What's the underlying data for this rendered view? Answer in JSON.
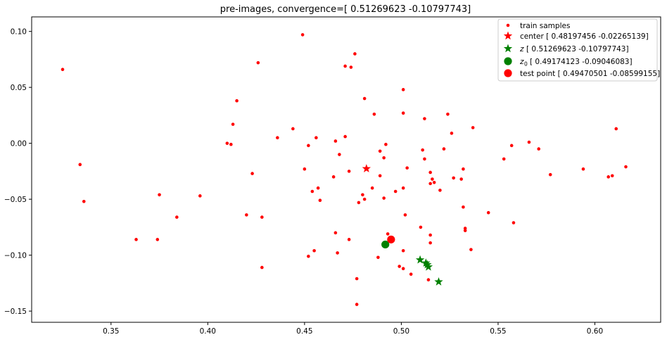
{
  "chart_data": {
    "type": "scatter",
    "title": "pre-images, convergence=[ 0.51269623 -0.10797743]",
    "xlabel": "",
    "ylabel": "",
    "xlim": [
      0.309,
      0.634
    ],
    "ylim": [
      -0.16,
      0.113
    ],
    "x_ticks": [
      0.35,
      0.4,
      0.45,
      0.5,
      0.55,
      0.6
    ],
    "x_tick_labels": [
      "0.35",
      "0.40",
      "0.45",
      "0.50",
      "0.55",
      "0.60"
    ],
    "y_ticks": [
      0.1,
      0.05,
      0.0,
      -0.05,
      -0.1,
      -0.15
    ],
    "y_tick_labels": [
      "0.10",
      "0.05",
      "0.00",
      "−0.05",
      "−0.10",
      "−0.15"
    ],
    "grid": false,
    "legend_position": "top-right",
    "series": [
      {
        "name": "train samples",
        "legend_label": "train samples",
        "marker": "dot",
        "color": "#ff0000",
        "points": [
          [
            0.325,
            0.066
          ],
          [
            0.449,
            0.097
          ],
          [
            0.476,
            0.08
          ],
          [
            0.471,
            0.069
          ],
          [
            0.474,
            0.068
          ],
          [
            0.426,
            0.072
          ],
          [
            0.481,
            0.04
          ],
          [
            0.501,
            0.048
          ],
          [
            0.415,
            0.038
          ],
          [
            0.486,
            0.026
          ],
          [
            0.501,
            0.027
          ],
          [
            0.512,
            0.022
          ],
          [
            0.524,
            0.026
          ],
          [
            0.537,
            0.014
          ],
          [
            0.611,
            0.013
          ],
          [
            0.413,
            0.017
          ],
          [
            0.444,
            0.013
          ],
          [
            0.526,
            0.009
          ],
          [
            0.566,
            0.001
          ],
          [
            0.471,
            0.006
          ],
          [
            0.456,
            0.005
          ],
          [
            0.436,
            0.005
          ],
          [
            0.466,
            0.002
          ],
          [
            0.41,
            0.0
          ],
          [
            0.412,
            -0.001
          ],
          [
            0.452,
            -0.002
          ],
          [
            0.492,
            -0.001
          ],
          [
            0.557,
            -0.002
          ],
          [
            0.571,
            -0.005
          ],
          [
            0.511,
            -0.006
          ],
          [
            0.522,
            -0.005
          ],
          [
            0.489,
            -0.007
          ],
          [
            0.468,
            -0.01
          ],
          [
            0.491,
            -0.013
          ],
          [
            0.512,
            -0.014
          ],
          [
            0.553,
            -0.014
          ],
          [
            0.334,
            -0.019
          ],
          [
            0.45,
            -0.023
          ],
          [
            0.503,
            -0.022
          ],
          [
            0.532,
            -0.023
          ],
          [
            0.594,
            -0.023
          ],
          [
            0.616,
            -0.021
          ],
          [
            0.473,
            -0.025
          ],
          [
            0.515,
            -0.026
          ],
          [
            0.423,
            -0.027
          ],
          [
            0.577,
            -0.028
          ],
          [
            0.465,
            -0.03
          ],
          [
            0.489,
            -0.029
          ],
          [
            0.609,
            -0.029
          ],
          [
            0.607,
            -0.03
          ],
          [
            0.516,
            -0.032
          ],
          [
            0.527,
            -0.031
          ],
          [
            0.531,
            -0.032
          ],
          [
            0.515,
            -0.036
          ],
          [
            0.517,
            -0.035
          ],
          [
            0.501,
            -0.04
          ],
          [
            0.457,
            -0.04
          ],
          [
            0.485,
            -0.04
          ],
          [
            0.454,
            -0.043
          ],
          [
            0.497,
            -0.043
          ],
          [
            0.52,
            -0.042
          ],
          [
            0.375,
            -0.046
          ],
          [
            0.396,
            -0.047
          ],
          [
            0.48,
            -0.046
          ],
          [
            0.458,
            -0.051
          ],
          [
            0.491,
            -0.049
          ],
          [
            0.481,
            -0.05
          ],
          [
            0.336,
            -0.052
          ],
          [
            0.478,
            -0.053
          ],
          [
            0.532,
            -0.057
          ],
          [
            0.545,
            -0.062
          ],
          [
            0.42,
            -0.064
          ],
          [
            0.502,
            -0.064
          ],
          [
            0.384,
            -0.066
          ],
          [
            0.428,
            -0.066
          ],
          [
            0.558,
            -0.071
          ],
          [
            0.51,
            -0.075
          ],
          [
            0.533,
            -0.076
          ],
          [
            0.533,
            -0.078
          ],
          [
            0.466,
            -0.08
          ],
          [
            0.493,
            -0.081
          ],
          [
            0.515,
            -0.082
          ],
          [
            0.363,
            -0.086
          ],
          [
            0.374,
            -0.086
          ],
          [
            0.473,
            -0.086
          ],
          [
            0.515,
            -0.089
          ],
          [
            0.536,
            -0.095
          ],
          [
            0.455,
            -0.096
          ],
          [
            0.501,
            -0.096
          ],
          [
            0.467,
            -0.098
          ],
          [
            0.452,
            -0.101
          ],
          [
            0.488,
            -0.102
          ],
          [
            0.428,
            -0.111
          ],
          [
            0.499,
            -0.11
          ],
          [
            0.501,
            -0.112
          ],
          [
            0.505,
            -0.117
          ],
          [
            0.477,
            -0.121
          ],
          [
            0.514,
            -0.122
          ],
          [
            0.477,
            -0.144
          ]
        ]
      },
      {
        "name": "center",
        "legend_label": "center [ 0.48197456 -0.02265139]",
        "marker": "star",
        "color": "#ff0000",
        "points": [
          [
            0.48197456,
            -0.02265139
          ]
        ]
      },
      {
        "name": "z",
        "legend_label_text": "[ 0.51269623 -0.10797743]",
        "marker": "star",
        "color": "#008000",
        "points": [
          [
            0.5097,
            -0.1042
          ],
          [
            0.5127,
            -0.107
          ],
          [
            0.5134,
            -0.1085
          ],
          [
            0.514,
            -0.1105
          ],
          [
            0.5193,
            -0.1238
          ]
        ]
      },
      {
        "name": "z0",
        "legend_label_text": "[ 0.49174123 -0.09046083]",
        "marker": "circle",
        "color": "#008000",
        "points": [
          [
            0.49174123,
            -0.09046083
          ]
        ]
      },
      {
        "name": "test point",
        "legend_label": "test point [ 0.49470501 -0.08599155]",
        "marker": "circle",
        "color": "#ff0000",
        "points": [
          [
            0.49470501,
            -0.08599155
          ]
        ]
      }
    ]
  }
}
